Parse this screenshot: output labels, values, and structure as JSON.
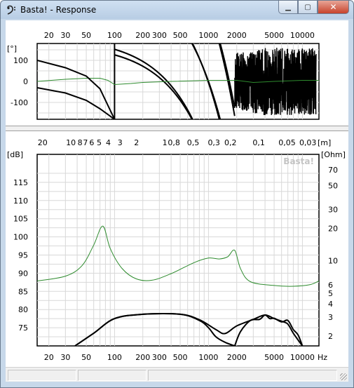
{
  "window": {
    "title": "Basta! - Response",
    "minimize_icon": "minimize-icon",
    "maximize_icon": "maximize-icon",
    "close_icon": "close-icon",
    "app_icon": "bass-clef-icon"
  },
  "watermark": "Basta!",
  "chart_data": [
    {
      "type": "line",
      "name_hint": "phase",
      "y_unit_label": "[°]",
      "x_scale": "log",
      "xlim": [
        15,
        15000
      ],
      "ylim": [
        -180,
        180
      ],
      "grid": true,
      "x_tick_labels": [
        "20",
        "30",
        "50",
        "100",
        "200",
        "300",
        "500",
        "1000",
        "2000",
        "5000",
        "10000"
      ],
      "x_tick_values": [
        20,
        30,
        50,
        100,
        200,
        300,
        500,
        1000,
        2000,
        5000,
        10000
      ],
      "y_tick_labels": [
        "100",
        "0",
        "-100"
      ],
      "y_tick_values": [
        100,
        0,
        -100
      ],
      "series": [
        {
          "color": "#2e8b2e",
          "x": [
            15,
            30,
            50,
            70,
            85,
            100,
            150,
            200,
            400,
            1000,
            2000,
            3000,
            5000,
            10000,
            15000
          ],
          "y": [
            0,
            10,
            15,
            15,
            5,
            -15,
            -10,
            -5,
            0,
            5,
            5,
            -5,
            0,
            5,
            5
          ]
        },
        {
          "color": "#000000",
          "x": [
            15,
            30,
            50,
            70,
            100
          ],
          "y": [
            100,
            65,
            25,
            -35,
            -180
          ]
        },
        {
          "color": "#000000",
          "x": [
            15,
            30,
            50,
            70,
            100
          ],
          "y": [
            -30,
            -55,
            -90,
            -130,
            -180
          ]
        }
      ]
    },
    {
      "type": "line",
      "name_hint": "magnitude",
      "y_unit_label": "[dB]",
      "y2_unit_label": "[Ohm]",
      "x2_unit_label": "[m]",
      "x_unit_label": "Hz",
      "x_scale": "log",
      "xlim": [
        15,
        15000
      ],
      "ylim": [
        70,
        120
      ],
      "grid": true,
      "x_tick_labels": [
        "20",
        "30",
        "50",
        "100",
        "200",
        "300",
        "500",
        "1000",
        "2000",
        "5000",
        "10000"
      ],
      "x_tick_values": [
        20,
        30,
        50,
        100,
        200,
        300,
        500,
        1000,
        2000,
        5000,
        10000
      ],
      "y_tick_labels": [
        "75",
        "80",
        "85",
        "90",
        "95",
        "100",
        "105",
        "110",
        "115"
      ],
      "y_tick_values": [
        75,
        80,
        85,
        90,
        95,
        100,
        105,
        110,
        115
      ],
      "y2_tick_labels": [
        "2",
        "3",
        "4",
        "5",
        "6",
        "10",
        "20",
        "30",
        "50",
        "70"
      ],
      "y2_tick_values": [
        2,
        3,
        4,
        5,
        6,
        10,
        20,
        30,
        50,
        70
      ],
      "x2_tick_labels": [
        "20",
        "10",
        "8",
        "7",
        "6",
        "5",
        "4",
        "3",
        "2",
        "1",
        "0,8",
        "0,5",
        "0,3",
        "0,2",
        "0,1",
        "0,05",
        "0,03"
      ],
      "x2_tick_values": [
        20,
        10,
        8,
        7,
        6,
        5,
        4,
        3,
        2,
        1,
        0.8,
        0.5,
        0.3,
        0.2,
        0.1,
        0.05,
        0.03
      ],
      "series": [
        {
          "color": "#2e8b2e",
          "axis": "y2_ohm",
          "x": [
            15,
            30,
            45,
            60,
            75,
            90,
            120,
            170,
            250,
            400,
            700,
            1000,
            1300,
            1600,
            1900,
            2200,
            2800,
            5000,
            8000,
            12000,
            15000
          ],
          "y": [
            6.5,
            7.2,
            9.0,
            14,
            21,
            13,
            8.5,
            6.8,
            6.6,
            7.6,
            9.6,
            10.6,
            10.4,
            10.9,
            12.5,
            8.4,
            6.4,
            5.9,
            5.8,
            6.0,
            6.5
          ]
        },
        {
          "color": "#000000",
          "x": [
            38,
            60,
            100,
            200,
            500,
            800,
            1200,
            1500,
            2000,
            3000,
            4000,
            5000,
            6000,
            7000,
            8000,
            10000
          ],
          "y": [
            70,
            73.5,
            77.5,
            78.7,
            78.7,
            77.2,
            74.5,
            73.4,
            75.5,
            77.3,
            78.5,
            77.5,
            76.8,
            76,
            73.5,
            70
          ]
        },
        {
          "color": "#000000",
          "x": [
            38,
            60,
            100,
            200,
            500,
            800,
            1000,
            1200,
            1500,
            1900
          ],
          "y": [
            70,
            73.5,
            77.5,
            78.7,
            78.7,
            77,
            75,
            72.5,
            71,
            70
          ]
        },
        {
          "color": "#000000",
          "x": [
            1900,
            2200,
            2800,
            3500,
            4000,
            4500,
            5000,
            6000,
            7000,
            8000,
            9000,
            10000
          ],
          "y": [
            70,
            74,
            77,
            77.3,
            78.5,
            77.5,
            77.6,
            76.6,
            77,
            74.5,
            73,
            70
          ]
        }
      ]
    }
  ]
}
